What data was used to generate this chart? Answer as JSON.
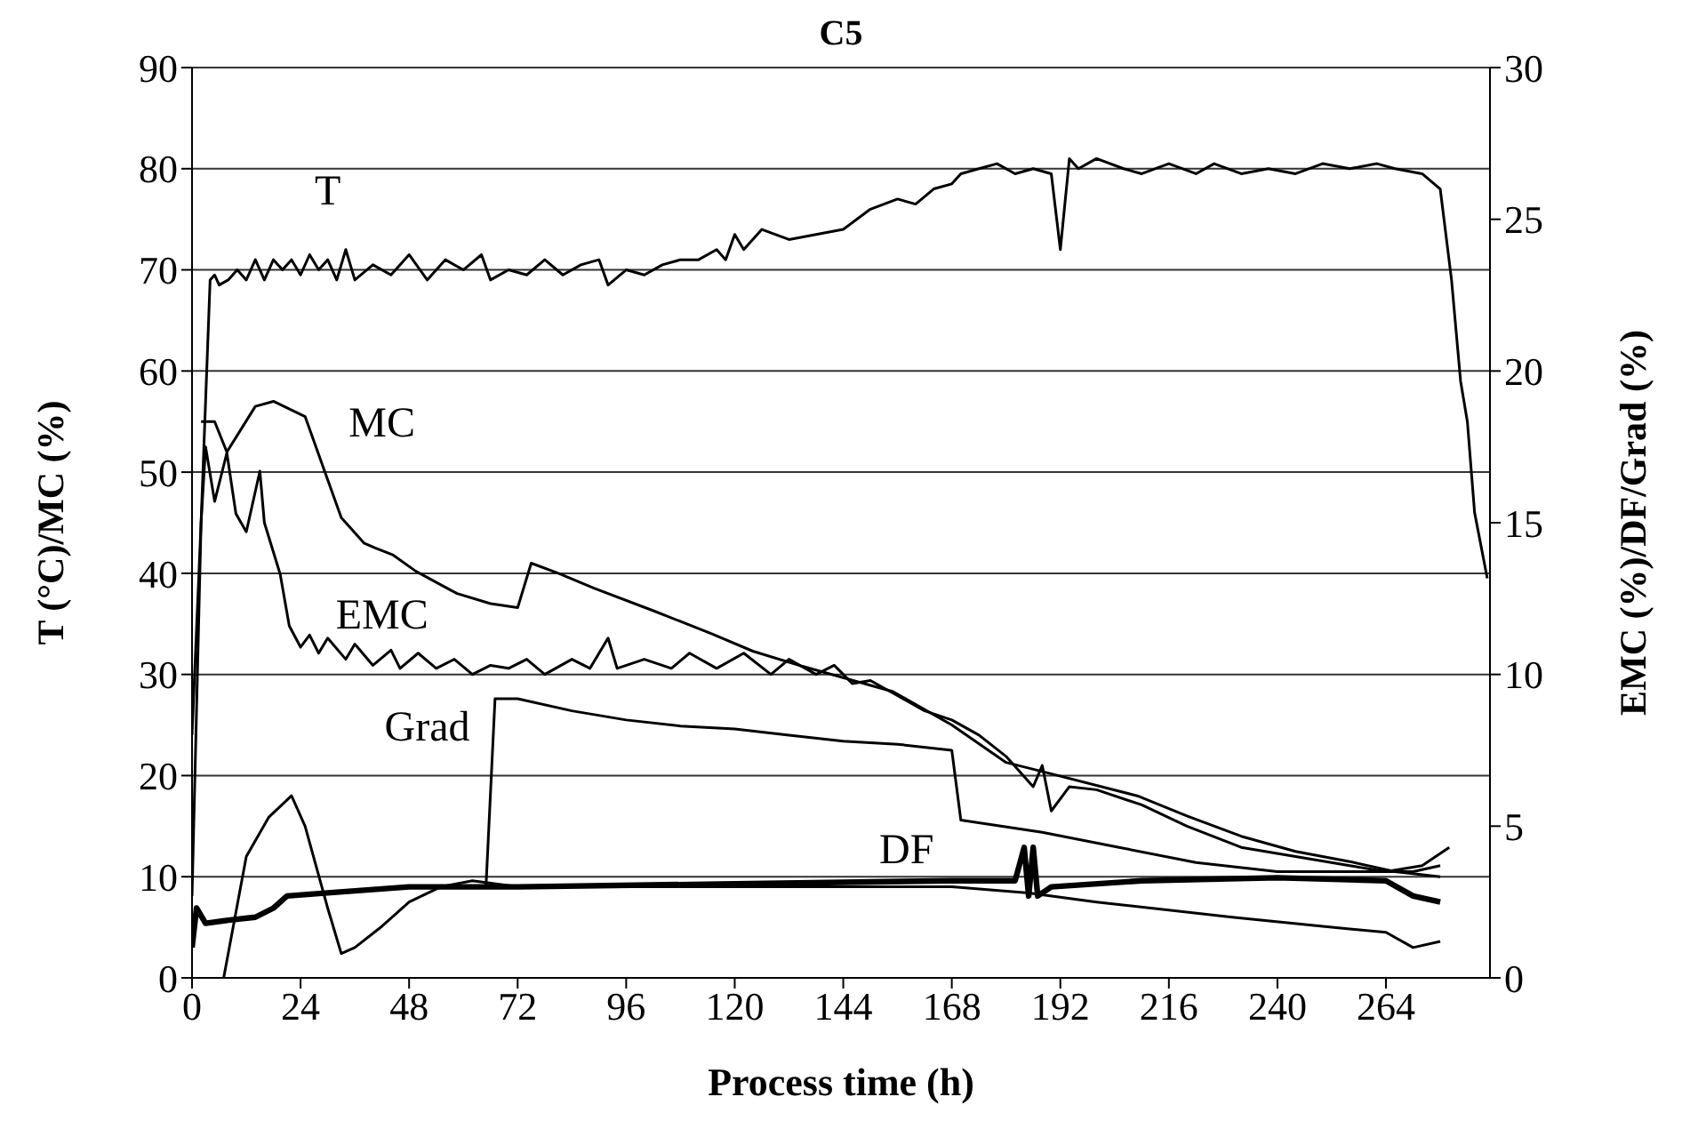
{
  "chart_data": {
    "type": "line",
    "title": "C5",
    "xlabel": "Process time (h)",
    "ylabel": "T (°C)/MC (%)",
    "y2label": "EMC (%)/DF/Grad (%)",
    "xlim": [
      0,
      287
    ],
    "xticks": [
      0,
      24,
      48,
      72,
      96,
      120,
      144,
      168,
      192,
      216,
      240,
      264
    ],
    "ylim": [
      0,
      90
    ],
    "yticks": [
      0,
      10,
      20,
      30,
      40,
      50,
      60,
      70,
      80,
      90
    ],
    "y2lim": [
      0,
      30
    ],
    "y2ticks": [
      0,
      5,
      10,
      15,
      20,
      25,
      30
    ],
    "grid": "y",
    "legend": false,
    "marker": "none",
    "line_style": "solid",
    "series": [
      {
        "name": "T",
        "color": "#000000",
        "x": [
          0,
          2,
          4,
          5,
          6,
          8,
          10,
          12,
          14,
          16,
          18,
          20,
          22,
          24,
          26,
          28,
          30,
          32,
          34,
          36,
          40,
          44,
          48,
          52,
          56,
          60,
          64,
          66,
          70,
          74,
          78,
          82,
          86,
          90,
          92,
          96,
          100,
          104,
          108,
          112,
          116,
          118,
          120,
          122,
          126,
          132,
          138,
          144,
          150,
          156,
          160,
          164,
          168,
          170,
          174,
          178,
          182,
          186,
          190,
          192,
          194,
          196,
          200,
          206,
          210,
          216,
          222,
          226,
          232,
          238,
          244,
          250,
          256,
          262,
          266,
          272,
          276,
          278.5,
          280.5,
          282,
          283.6,
          286.4
        ],
        "values": [
          24,
          45,
          69,
          69.5,
          68.5,
          69,
          70,
          69,
          71,
          69,
          71,
          70,
          71,
          69.5,
          71.5,
          70,
          71,
          69,
          72,
          69,
          70.5,
          69.5,
          71.5,
          69,
          71,
          70,
          71.5,
          69,
          70,
          69.5,
          71,
          69.5,
          70.5,
          71,
          68.5,
          70,
          69.5,
          70.5,
          71,
          71,
          72,
          71,
          73.5,
          72,
          74,
          73,
          73.5,
          74,
          76,
          77,
          76.5,
          78,
          78.5,
          79.5,
          80,
          80.5,
          79.5,
          80,
          79.5,
          72,
          81,
          80,
          81,
          80,
          79.5,
          80.5,
          79.5,
          80.5,
          79.5,
          80,
          79.5,
          80.5,
          80,
          80.5,
          80,
          79.5,
          78,
          69,
          59,
          55,
          46,
          39.5
        ]
      },
      {
        "name": "MC",
        "color": "#000000",
        "x": [
          2,
          5,
          7.7,
          14,
          18,
          25,
          29,
          33,
          38,
          40.5,
          44.5,
          49.5,
          58.6,
          66,
          72,
          75,
          81,
          89,
          102,
          115,
          124,
          135,
          155,
          168,
          180,
          188,
          209,
          220,
          232,
          244,
          256,
          266,
          276
        ],
        "values": [
          55,
          55,
          52,
          56.5,
          57,
          55.5,
          50.5,
          45.5,
          43,
          42.5,
          41.8,
          40.2,
          38,
          37,
          36.6,
          41,
          40,
          38.5,
          36.3,
          34,
          32.3,
          30.8,
          28.3,
          25,
          21.3,
          20.4,
          18,
          16,
          14,
          12.5,
          11.5,
          10.5,
          10
        ]
      },
      {
        "name": "EMC",
        "color": "#000000",
        "axis": "y2",
        "x": [
          0,
          2,
          3,
          5,
          7.7,
          9.7,
          12,
          15,
          16,
          19.5,
          21.5,
          24,
          26,
          28,
          30,
          34,
          36,
          40,
          44,
          46,
          50,
          54,
          58,
          62,
          66,
          70,
          74,
          78,
          84,
          88,
          92,
          94,
          100,
          106,
          110,
          116,
          122,
          128,
          132,
          138,
          142,
          146,
          150,
          156,
          162,
          168,
          174,
          180,
          186,
          188,
          190,
          194,
          200,
          210,
          220,
          232,
          244,
          256,
          264,
          270,
          276
        ],
        "values": [
          2.7,
          15,
          17.5,
          15.7,
          17.3,
          15.3,
          14.7,
          16.7,
          15,
          13.3,
          11.6,
          10.9,
          11.3,
          10.7,
          11.2,
          10.5,
          11,
          10.3,
          10.8,
          10.2,
          10.7,
          10.2,
          10.5,
          10,
          10.3,
          10.2,
          10.5,
          10,
          10.5,
          10.2,
          11.2,
          10.2,
          10.5,
          10.2,
          10.7,
          10.2,
          10.7,
          10,
          10.5,
          10,
          10.3,
          9.7,
          9.8,
          9.3,
          8.8,
          8.5,
          8,
          7.3,
          6.3,
          7,
          5.5,
          6.3,
          6.2,
          5.7,
          5,
          4.3,
          4,
          3.7,
          3.5,
          3.5,
          3.7
        ]
      },
      {
        "name": "Grad",
        "color": "#000000",
        "axis": "y2",
        "x": [
          65,
          67,
          72,
          84,
          96,
          108,
          120,
          132,
          144,
          156,
          168,
          170,
          188,
          205,
          222,
          240,
          264,
          272,
          278
        ],
        "values": [
          3,
          9.2,
          9.2,
          8.8,
          8.5,
          8.3,
          8.2,
          8,
          7.8,
          7.7,
          7.5,
          5.2,
          4.8,
          4.3,
          3.8,
          3.5,
          3.5,
          3.7,
          4.3
        ]
      },
      {
        "color": "#000000",
        "axis": "y2",
        "x": [
          7,
          12,
          17,
          22,
          25,
          30,
          33,
          36,
          42,
          48,
          55,
          62,
          72,
          120,
          168,
          185,
          200,
          230,
          250,
          264,
          270,
          276
        ],
        "values": [
          0,
          4,
          5.3,
          6,
          5,
          2.3,
          0.8,
          1,
          1.7,
          2.5,
          3,
          3.2,
          3,
          3,
          3,
          2.8,
          2.5,
          2,
          1.7,
          1.5,
          1,
          1.2
        ]
      },
      {
        "name": "DF",
        "color": "#000000",
        "axis": "y2",
        "x": [
          0,
          1,
          3,
          8,
          14,
          18,
          21,
          30,
          48,
          72,
          120,
          168,
          182,
          184,
          185,
          186,
          187,
          190,
          210,
          240,
          264,
          270,
          276
        ],
        "values": [
          1,
          2.3,
          1.8,
          1.9,
          2,
          2.3,
          2.7,
          2.8,
          3,
          3,
          3.1,
          3.2,
          3.2,
          4.3,
          2.7,
          4.3,
          2.7,
          3,
          3.2,
          3.3,
          3.2,
          2.7,
          2.5
        ]
      }
    ]
  }
}
